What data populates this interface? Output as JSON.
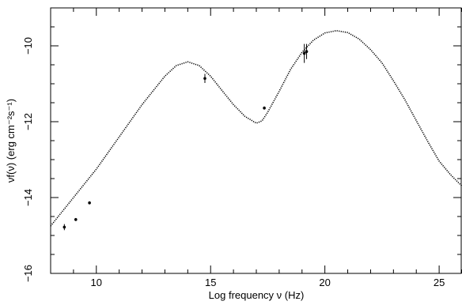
{
  "chart_data": {
    "type": "scatter",
    "title": "",
    "xlabel": "Log frequency ν (Hz)",
    "ylabel": "νf(ν) (erg cm⁻²s⁻¹)",
    "xlim": [
      8,
      26
    ],
    "ylim": [
      -16,
      -9
    ],
    "x_ticks": [
      10,
      15,
      20,
      25
    ],
    "y_ticks": [
      -16,
      -14,
      -12,
      -10
    ],
    "x_tick_labels": [
      "10",
      "15",
      "20",
      "25"
    ],
    "y_tick_labels": [
      "−16",
      "−14",
      "−12",
      "−10"
    ],
    "grid": false,
    "legend": "none",
    "series": [
      {
        "kind": "points",
        "points": [
          {
            "x": 8.6,
            "y": -14.78,
            "yerr": 0.08
          },
          {
            "x": 9.1,
            "y": -14.58,
            "yerr": 0.04
          },
          {
            "x": 9.7,
            "y": -14.14,
            "yerr": 0.04
          },
          {
            "x": 14.75,
            "y": -10.86,
            "yerr": 0.12
          },
          {
            "x": 17.35,
            "y": -11.64,
            "yerr": 0.04
          },
          {
            "x": 19.1,
            "y": -10.2,
            "yerr": 0.25
          },
          {
            "x": 19.2,
            "y": -10.15,
            "yerr": 0.2
          }
        ]
      },
      {
        "kind": "model",
        "x": [
          8.0,
          9.0,
          10.0,
          11.0,
          12.0,
          13.0,
          13.5,
          14.0,
          14.5,
          15.0,
          15.5,
          16.0,
          16.5,
          17.0,
          17.25,
          17.5,
          18.0,
          18.5,
          19.0,
          19.5,
          20.0,
          20.5,
          21.0,
          21.5,
          22.0,
          22.5,
          23.0,
          23.5,
          24.0,
          24.5,
          25.0,
          25.5,
          26.0
        ],
        "y": [
          -14.75,
          -14.0,
          -13.25,
          -12.4,
          -11.55,
          -10.8,
          -10.52,
          -10.42,
          -10.52,
          -10.8,
          -11.18,
          -11.55,
          -11.86,
          -12.04,
          -11.98,
          -11.75,
          -11.2,
          -10.62,
          -10.17,
          -9.85,
          -9.66,
          -9.6,
          -9.65,
          -9.82,
          -10.1,
          -10.45,
          -10.92,
          -11.42,
          -11.97,
          -12.52,
          -13.04,
          -13.4,
          -13.7
        ]
      }
    ]
  }
}
